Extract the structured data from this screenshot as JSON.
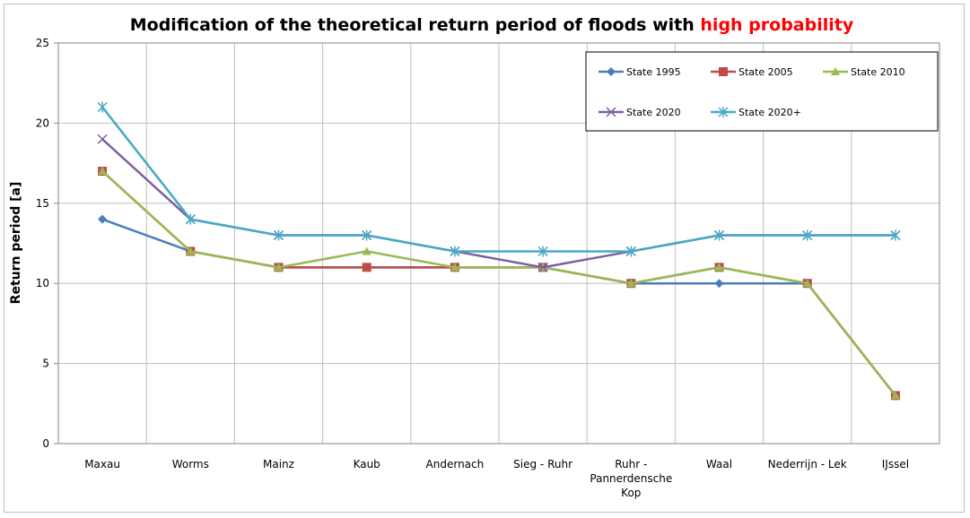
{
  "chart_data": {
    "type": "line",
    "title": "Modification of the theoretical return period of floods with",
    "title_emphasis": "high probability",
    "y_label": "Return period [a]",
    "categories": [
      "Maxau",
      "Worms",
      "Mainz",
      "Kaub",
      "Andernach",
      "Sieg - Ruhr",
      "Ruhr - Pannerdensche Kop",
      "Waal",
      "Nederrijn - Lek",
      "IJssel"
    ],
    "ylim": [
      0,
      25
    ],
    "yticks": [
      0,
      5,
      10,
      15,
      20,
      25
    ],
    "grid": true,
    "legend": "top-right",
    "series": [
      {
        "name": "State 1995",
        "color": "#4a7ebb",
        "marker": "diamond",
        "values": [
          14,
          12,
          11,
          11,
          11,
          11,
          10,
          10,
          10,
          3
        ]
      },
      {
        "name": "State 2005",
        "color": "#be4b48",
        "marker": "square",
        "values": [
          17,
          12,
          11,
          11,
          11,
          11,
          10,
          11,
          10,
          3
        ]
      },
      {
        "name": "State 2010",
        "color": "#98b954",
        "marker": "triangle",
        "values": [
          17,
          12,
          11,
          12,
          11,
          11,
          10,
          11,
          10,
          3
        ]
      },
      {
        "name": "State 2020",
        "color": "#7d60a0",
        "marker": "x",
        "values": [
          19,
          14,
          13,
          13,
          12,
          11,
          12,
          13,
          13,
          13
        ]
      },
      {
        "name": "State 2020+",
        "color": "#46aac5",
        "marker": "star",
        "values": [
          21,
          14,
          13,
          13,
          12,
          12,
          12,
          13,
          13,
          13
        ]
      }
    ]
  }
}
